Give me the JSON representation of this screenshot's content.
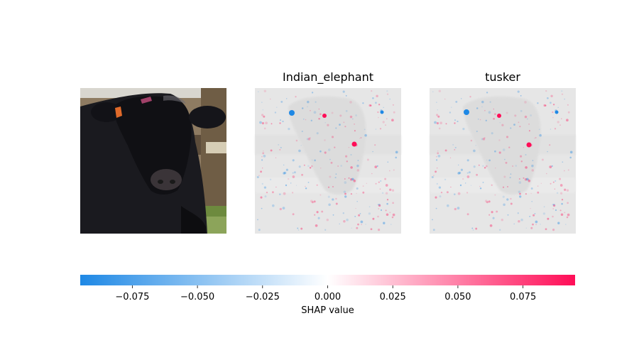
{
  "chart_data": {
    "type": "heatmap",
    "kind": "shap-image-explanation",
    "panels": [
      {
        "label": "",
        "content": "original-image"
      },
      {
        "label": "Indian_elephant",
        "content": "shap-overlay"
      },
      {
        "label": "tusker",
        "content": "shap-overlay"
      }
    ],
    "colorbar": {
      "label": "SHAP value",
      "range": [
        -0.095,
        0.095
      ],
      "ticks": [
        -0.075,
        -0.05,
        -0.025,
        0.0,
        0.025,
        0.05,
        0.075
      ],
      "tick_labels": [
        "−0.075",
        "−0.050",
        "−0.025",
        "0.000",
        "0.025",
        "0.050",
        "0.075"
      ],
      "colors": {
        "negative": "#1e88e5",
        "zero": "#ffffff",
        "positive": "#ff0d57"
      }
    }
  }
}
